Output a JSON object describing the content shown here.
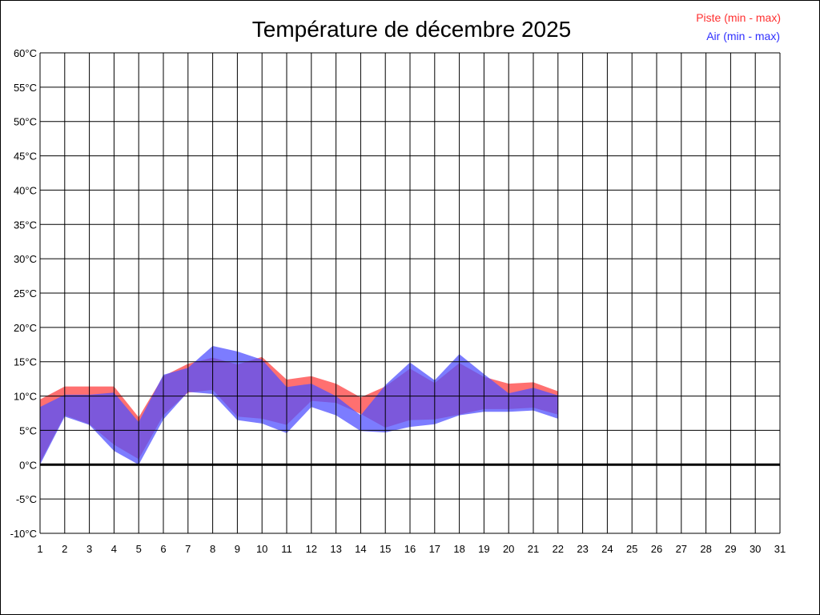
{
  "chart_data": {
    "type": "area",
    "title": "Température de décembre 2025",
    "xlabel": "",
    "ylabel": "",
    "x_ticks": [
      "1",
      "2",
      "3",
      "4",
      "5",
      "6",
      "7",
      "8",
      "9",
      "10",
      "11",
      "12",
      "13",
      "14",
      "15",
      "16",
      "17",
      "18",
      "19",
      "20",
      "21",
      "22",
      "23",
      "24",
      "25",
      "26",
      "27",
      "28",
      "29",
      "30",
      "31"
    ],
    "y_ticks": [
      "60°C",
      "55°C",
      "50°C",
      "45°C",
      "40°C",
      "35°C",
      "30°C",
      "25°C",
      "20°C",
      "15°C",
      "10°C",
      "5°C",
      "0°C",
      "-5°C",
      "-10°C"
    ],
    "xlim": [
      1,
      31
    ],
    "ylim": [
      -10,
      60
    ],
    "grid": true,
    "legend_position": "top-right",
    "series": [
      {
        "name": "Piste (min - max)",
        "color": "#ff4040",
        "x": [
          1,
          2,
          3,
          4,
          5,
          6,
          7,
          8,
          9,
          10,
          11,
          12,
          13,
          14,
          15,
          16,
          17,
          18,
          19,
          20,
          21,
          22
        ],
        "min": [
          0.3,
          7.2,
          5.9,
          2.9,
          0.8,
          7.2,
          10.5,
          10.9,
          7.0,
          6.7,
          5.8,
          9.3,
          9.0,
          7.4,
          5.4,
          6.5,
          6.6,
          7.3,
          8.1,
          8.1,
          8.3,
          7.3
        ],
        "max": [
          9.5,
          11.4,
          11.4,
          11.4,
          6.9,
          12.9,
          14.7,
          15.6,
          14.6,
          15.7,
          12.4,
          12.9,
          11.8,
          9.8,
          11.4,
          14.0,
          11.9,
          14.8,
          12.8,
          11.8,
          12.0,
          10.7
        ]
      },
      {
        "name": "Air (min - max)",
        "color": "#5050ff",
        "x": [
          1,
          2,
          3,
          4,
          5,
          6,
          7,
          8,
          9,
          10,
          11,
          12,
          13,
          14,
          15,
          16,
          17,
          18,
          19,
          20,
          21,
          22
        ],
        "min": [
          0.0,
          7.0,
          5.8,
          2.0,
          0.0,
          6.6,
          10.6,
          10.3,
          6.5,
          6.0,
          4.6,
          8.4,
          7.2,
          4.9,
          4.7,
          5.5,
          5.9,
          7.2,
          7.7,
          7.7,
          7.9,
          6.7
        ],
        "max": [
          8.4,
          10.2,
          10.2,
          10.5,
          6.2,
          13.1,
          14.1,
          17.3,
          16.5,
          15.3,
          11.3,
          11.8,
          10.0,
          7.2,
          11.6,
          14.9,
          12.3,
          16.1,
          13.2,
          10.4,
          11.2,
          10.1
        ]
      }
    ]
  }
}
